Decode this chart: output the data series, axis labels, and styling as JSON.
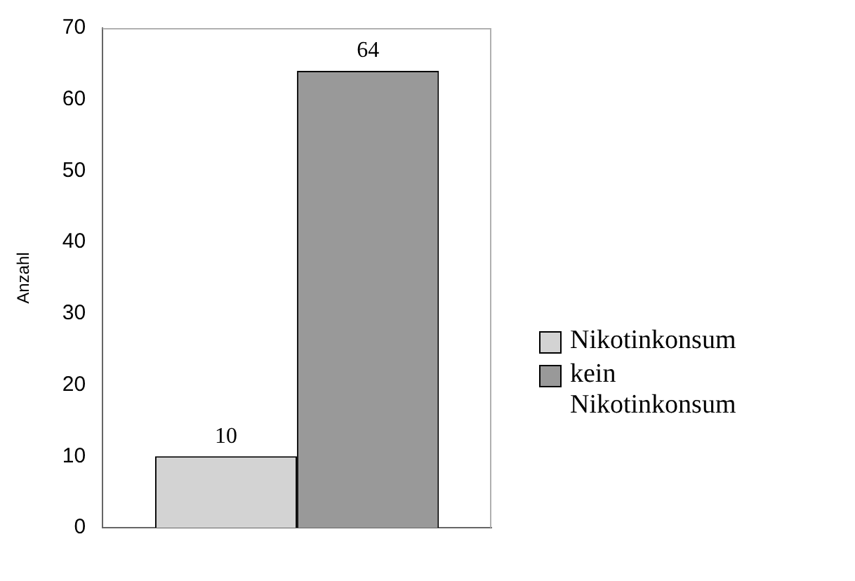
{
  "chart_data": {
    "type": "bar",
    "ylabel": "Anzahl",
    "categories": [
      null
    ],
    "series": [
      {
        "name": "Nikotinkonsum",
        "color": "#d3d3d3",
        "values": [
          10
        ]
      },
      {
        "name": "kein Nikotinkonsum",
        "color": "#999999",
        "values": [
          64
        ]
      }
    ],
    "ylim": [
      0,
      70
    ],
    "yticks": [
      0,
      10,
      20,
      30,
      40,
      50,
      60,
      70
    ],
    "grid": false,
    "legend": "right",
    "data_labels": true
  }
}
